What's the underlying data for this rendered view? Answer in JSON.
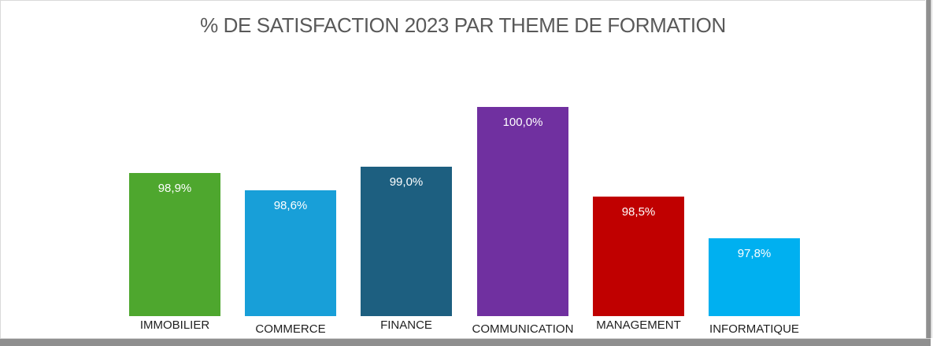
{
  "window": {
    "background": "#ffffff",
    "border_light": "#d9d9d9",
    "border_dark": "#8f8f8f"
  },
  "chart_data": {
    "type": "bar",
    "title": "% DE SATISFACTION 2023 PAR THEME DE FORMATION",
    "title_color": "#595959",
    "categories": [
      "IMMOBILIER",
      "COMMERCE",
      "FINANCE",
      "COMMUNICATION",
      "MANAGEMENT",
      "INFORMATIQUE"
    ],
    "values": [
      98.9,
      98.6,
      99.0,
      100.0,
      98.5,
      97.8
    ],
    "value_labels": [
      "98,9%",
      "98,6%",
      "99,0%",
      "100,0%",
      "98,5%",
      "97,8%"
    ],
    "bar_colors": [
      "#4ea72e",
      "#189fd8",
      "#1d5f80",
      "#7030a0",
      "#c00000",
      "#00b0f0"
    ],
    "data_label_position": "inside-end",
    "data_label_color": "#ffffff",
    "category_label_color": "#1f1f1f",
    "xlabel": "",
    "ylabel": "",
    "ylim": [
      96.5,
      100
    ],
    "grid": false,
    "legend": false,
    "axes_hidden": true
  }
}
